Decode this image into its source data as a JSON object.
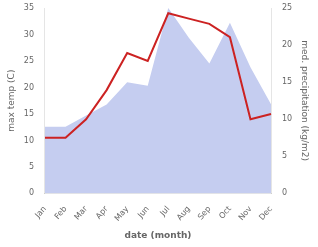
{
  "chart_data": {
    "type": "line",
    "categories": [
      "Jan",
      "Feb",
      "Mar",
      "Apr",
      "May",
      "Jun",
      "Jul",
      "Aug",
      "Sep",
      "Oct",
      "Nov",
      "Dec"
    ],
    "xlabel": "date (month)",
    "ylabel": "max temp (C)",
    "y2label": "med. precipitation (kg/m2)",
    "series": [
      {
        "type": "area",
        "color": "#c5cdf0",
        "axis": "y2",
        "values": [
          9.0,
          9.0,
          10.5,
          12.0,
          15.0,
          14.5,
          25.0,
          21.0,
          17.5,
          23.0,
          17.0,
          12.0
        ]
      },
      {
        "type": "line",
        "color": "#cc2222",
        "values": [
          10.5,
          10.5,
          14.0,
          19.5,
          26.5,
          25.0,
          34.0,
          33.0,
          32.0,
          29.5,
          14.0,
          15.0
        ]
      }
    ],
    "ylim": [
      0,
      35
    ],
    "yticks": [
      0,
      5,
      10,
      15,
      20,
      25,
      30,
      35
    ],
    "y2lim": [
      0,
      25
    ],
    "y2ticks": [
      0,
      5,
      10,
      15,
      20,
      25
    ],
    "grid": false
  }
}
